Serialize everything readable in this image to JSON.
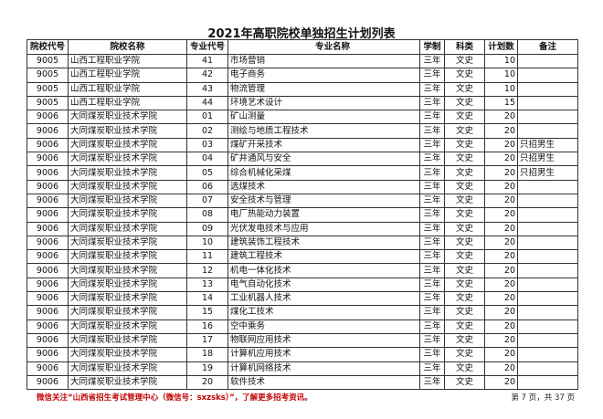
{
  "title": "2021年高职院校单独招生计划列表",
  "headers": [
    "院校代号",
    "院校名称",
    "专业代号",
    "专业名称",
    "学制",
    "科类",
    "计划数",
    "备注"
  ],
  "rows": [
    [
      "9005",
      "山西工程职业学院",
      "41",
      "市场营销",
      "三年",
      "文史",
      "10",
      ""
    ],
    [
      "9005",
      "山西工程职业学院",
      "42",
      "电子商务",
      "三年",
      "文史",
      "10",
      ""
    ],
    [
      "9005",
      "山西工程职业学院",
      "43",
      "物流管理",
      "三年",
      "文史",
      "10",
      ""
    ],
    [
      "9005",
      "山西工程职业学院",
      "44",
      "环境艺术设计",
      "三年",
      "文史",
      "15",
      ""
    ],
    [
      "9006",
      "大同煤炭职业技术学院",
      "01",
      "矿山测量",
      "三年",
      "文史",
      "20",
      ""
    ],
    [
      "9006",
      "大同煤炭职业技术学院",
      "02",
      "测绘与地质工程技术",
      "三年",
      "文史",
      "20",
      ""
    ],
    [
      "9006",
      "大同煤炭职业技术学院",
      "03",
      "煤矿开采技术",
      "三年",
      "文史",
      "20",
      "只招男生"
    ],
    [
      "9006",
      "大同煤炭职业技术学院",
      "04",
      "矿井通风与安全",
      "三年",
      "文史",
      "20",
      "只招男生"
    ],
    [
      "9006",
      "大同煤炭职业技术学院",
      "05",
      "综合机械化采煤",
      "三年",
      "文史",
      "20",
      "只招男生"
    ],
    [
      "9006",
      "大同煤炭职业技术学院",
      "06",
      "选煤技术",
      "三年",
      "文史",
      "20",
      ""
    ],
    [
      "9006",
      "大同煤炭职业技术学院",
      "07",
      "安全技术与管理",
      "三年",
      "文史",
      "20",
      ""
    ],
    [
      "9006",
      "大同煤炭职业技术学院",
      "08",
      "电厂热能动力装置",
      "三年",
      "文史",
      "20",
      ""
    ],
    [
      "9006",
      "大同煤炭职业技术学院",
      "09",
      "光伏发电技术与应用",
      "三年",
      "文史",
      "20",
      ""
    ],
    [
      "9006",
      "大同煤炭职业技术学院",
      "10",
      "建筑装饰工程技术",
      "三年",
      "文史",
      "20",
      ""
    ],
    [
      "9006",
      "大同煤炭职业技术学院",
      "11",
      "建筑工程技术",
      "三年",
      "文史",
      "20",
      ""
    ],
    [
      "9006",
      "大同煤炭职业技术学院",
      "12",
      "机电一体化技术",
      "三年",
      "文史",
      "20",
      ""
    ],
    [
      "9006",
      "大同煤炭职业技术学院",
      "13",
      "电气自动化技术",
      "三年",
      "文史",
      "20",
      ""
    ],
    [
      "9006",
      "大同煤炭职业技术学院",
      "14",
      "工业机器人技术",
      "三年",
      "文史",
      "20",
      ""
    ],
    [
      "9006",
      "大同煤炭职业技术学院",
      "15",
      "煤化工技术",
      "三年",
      "文史",
      "20",
      ""
    ],
    [
      "9006",
      "大同煤炭职业技术学院",
      "16",
      "空中乘务",
      "三年",
      "文史",
      "20",
      ""
    ],
    [
      "9006",
      "大同煤炭职业技术学院",
      "17",
      "物联网应用技术",
      "三年",
      "文史",
      "20",
      ""
    ],
    [
      "9006",
      "大同煤炭职业技术学院",
      "18",
      "计算机应用技术",
      "三年",
      "文史",
      "20",
      ""
    ],
    [
      "9006",
      "大同煤炭职业技术学院",
      "19",
      "计算机网络技术",
      "三年",
      "文史",
      "20",
      ""
    ],
    [
      "9006",
      "大同煤炭职业技术学院",
      "20",
      "软件技术",
      "三年",
      "文史",
      "20",
      ""
    ]
  ],
  "footer": {
    "notice": "微信关注“山西省招生考试管理中心（微信号：sxzsks）”，了解更多招考资讯。",
    "page": "第 7 页，共 37 页"
  },
  "colors": {
    "notice": "#c00000"
  }
}
